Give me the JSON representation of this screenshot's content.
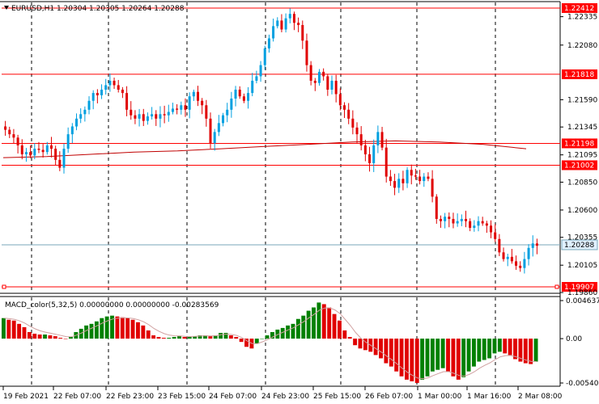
{
  "header": {
    "symbol_line": "EURUSD,H1  1.20304 1.20305 1.20264 1.20288",
    "macd_line": "MACD_color(5,32,5) 0.00000000 0.00000000 -0.00283569"
  },
  "colors": {
    "bull": "#00a0e0",
    "bear": "#e00000",
    "level_line": "#ff0000",
    "ma": "#c00000",
    "price_line": "#7aa7b8",
    "macd_up": "#008000",
    "macd_down": "#e00000",
    "signal": "#d0a0a0",
    "grid": "#000000",
    "tag_bg": "#ff0000",
    "current_tag_bg": "#e0f0ff"
  },
  "price_axis": {
    "ticks": [
      "1.22335",
      "1.22080",
      "1.21590",
      "1.21345",
      "1.21095",
      "1.20850",
      "1.20600",
      "1.20355",
      "1.20105",
      "1.19860"
    ],
    "levels": [
      {
        "value": "1.22412",
        "kind": "level"
      },
      {
        "value": "1.21818",
        "kind": "level"
      },
      {
        "value": "1.21198",
        "kind": "level"
      },
      {
        "value": "1.21002",
        "kind": "level"
      },
      {
        "value": "1.19907",
        "kind": "level"
      }
    ],
    "current": "1.20288"
  },
  "macd_axis": {
    "ticks": [
      "0.0046377",
      "0.00",
      "-0.005407"
    ]
  },
  "time_axis": {
    "labels": [
      "19 Feb 2021",
      "22 Feb 07:00",
      "22 Feb 23:00",
      "23 Feb 15:00",
      "24 Feb 07:00",
      "24 Feb 23:00",
      "25 Feb 15:00",
      "26 Feb 07:00",
      "1 Mar 00:00",
      "1 Mar 16:00",
      "2 Mar 08:00"
    ]
  },
  "chart_data": {
    "type": "candlestick",
    "price_range": [
      1.1986,
      1.2247
    ],
    "close_path": [
      1.2132,
      1.2128,
      1.2125,
      1.2118,
      1.211,
      1.2112,
      1.2109,
      1.2115,
      1.2114,
      1.2112,
      1.2118,
      1.2115,
      1.2105,
      1.2098,
      1.2115,
      1.2128,
      1.2135,
      1.2142,
      1.2146,
      1.215,
      1.2158,
      1.2165,
      1.2163,
      1.2168,
      1.2172,
      1.2176,
      1.2172,
      1.2168,
      1.2165,
      1.215,
      1.2145,
      1.2142,
      1.2146,
      1.214,
      1.2144,
      1.2146,
      1.2142,
      1.2146,
      1.2145,
      1.2148,
      1.2151,
      1.215,
      1.2154,
      1.215,
      1.2162,
      1.2166,
      1.2158,
      1.2154,
      1.2142,
      1.212,
      1.213,
      1.2138,
      1.2145,
      1.215,
      1.216,
      1.2168,
      1.2162,
      1.2158,
      1.2165,
      1.2176,
      1.218,
      1.219,
      1.2205,
      1.2214,
      1.2225,
      1.223,
      1.2222,
      1.2232,
      1.2236,
      1.2228,
      1.2226,
      1.2212,
      1.219,
      1.2176,
      1.2174,
      1.2184,
      1.218,
      1.2168,
      1.2176,
      1.2164,
      1.2154,
      1.215,
      1.2142,
      1.2134,
      1.2128,
      1.2118,
      1.211,
      1.2102,
      1.2118,
      1.213,
      1.2116,
      1.209,
      1.2086,
      1.208,
      1.2088,
      1.2084,
      1.2096,
      1.2091,
      1.209,
      1.2086,
      1.209,
      1.2088,
      1.2072,
      1.2052,
      1.205,
      1.2054,
      1.2052,
      1.2048,
      1.205,
      1.2052,
      1.205,
      1.2044,
      1.2046,
      1.205,
      1.2048,
      1.2046,
      1.204,
      1.2034,
      1.2022,
      1.2016,
      1.2018,
      1.2014,
      1.201,
      1.2008,
      1.2016,
      1.2026,
      1.203,
      1.2028
    ],
    "ma_path": [
      1.2107,
      1.2108,
      1.211,
      1.2112,
      1.2113,
      1.2115,
      1.2117,
      1.2119,
      1.2121,
      1.2122,
      1.2121,
      1.2119,
      1.2115
    ],
    "macd": [
      0.0025,
      0.0023,
      0.0022,
      0.0018,
      0.0014,
      0.0008,
      0.0006,
      0.0005,
      0.0005,
      0.0004,
      0.0003,
      0.0001,
      0.0,
      0.0002,
      0.0008,
      0.0012,
      0.0016,
      0.0018,
      0.0021,
      0.0025,
      0.0027,
      0.0028,
      0.0027,
      0.0026,
      0.0025,
      0.0023,
      0.002,
      0.0016,
      0.001,
      0.0004,
      0.0002,
      0.0001,
      0.0001,
      0.0002,
      0.0003,
      0.0002,
      0.0002,
      0.0003,
      0.0004,
      0.0004,
      0.0003,
      0.0004,
      0.0007,
      0.0007,
      0.0004,
      0.0002,
      -0.0004,
      -0.001,
      -0.0012,
      -0.0006,
      0.0,
      0.0004,
      0.0008,
      0.0011,
      0.0013,
      0.0016,
      0.0018,
      0.0024,
      0.0028,
      0.0034,
      0.0038,
      0.0044,
      0.0042,
      0.0038,
      0.003,
      0.0022,
      0.001,
      0.0002,
      -0.0008,
      -0.0012,
      -0.0014,
      -0.0016,
      -0.002,
      -0.0024,
      -0.003,
      -0.0034,
      -0.004,
      -0.0046,
      -0.005,
      -0.0052,
      -0.0054,
      -0.005,
      -0.0046,
      -0.004,
      -0.0038,
      -0.0036,
      -0.004,
      -0.0046,
      -0.005,
      -0.0047,
      -0.004,
      -0.0034,
      -0.0028,
      -0.0026,
      -0.0024,
      -0.0018,
      -0.0016,
      -0.0018,
      -0.002,
      -0.0025,
      -0.0028,
      -0.003,
      -0.0031,
      -0.0028
    ],
    "macd_range": [
      -0.005407,
      0.0046377
    ]
  }
}
